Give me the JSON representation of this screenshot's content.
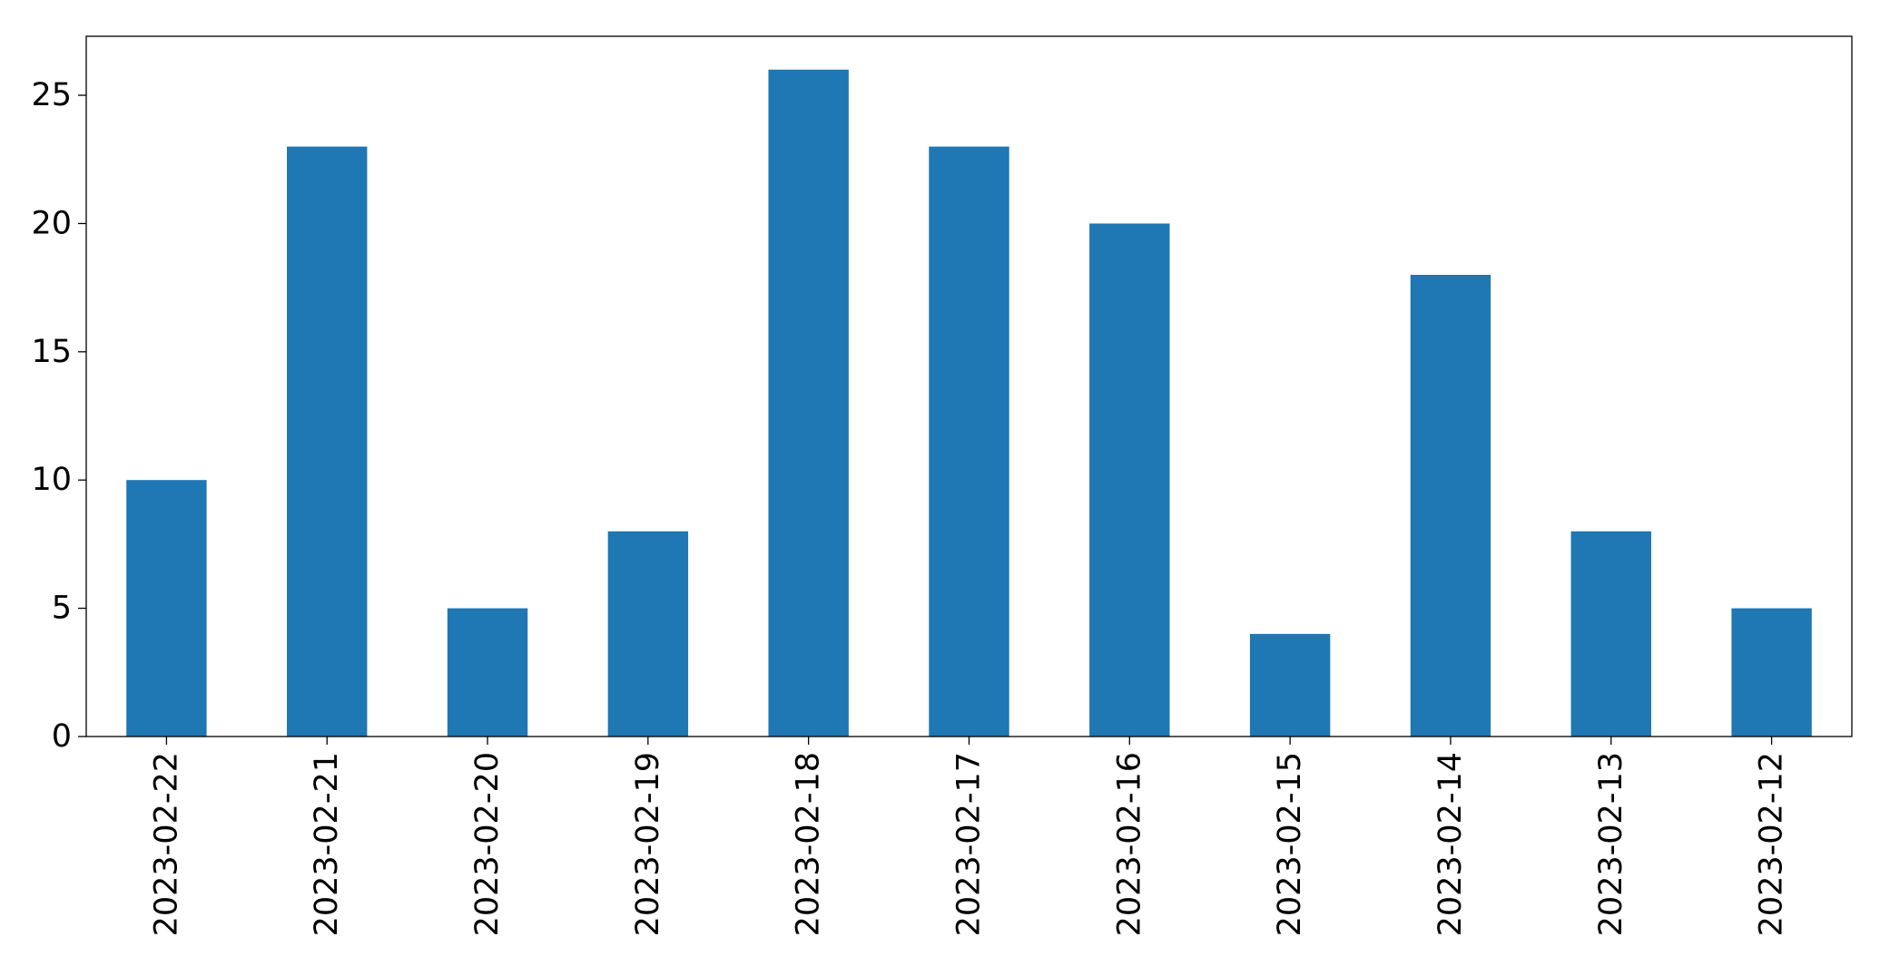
{
  "chart_data": {
    "type": "bar",
    "title": "",
    "xlabel": "",
    "ylabel": "",
    "categories": [
      "2023-02-22",
      "2023-02-21",
      "2023-02-20",
      "2023-02-19",
      "2023-02-18",
      "2023-02-17",
      "2023-02-16",
      "2023-02-15",
      "2023-02-14",
      "2023-02-13",
      "2023-02-12"
    ],
    "values": [
      10,
      23,
      5,
      8,
      26,
      23,
      20,
      4,
      18,
      8,
      5
    ],
    "ylim": [
      0,
      27.3
    ],
    "yticks": [
      0,
      5,
      10,
      15,
      20,
      25
    ],
    "grid": false,
    "legend": "none",
    "colors": {
      "bar": "#1f77b4",
      "axes": "#000000",
      "background": "#ffffff"
    }
  }
}
